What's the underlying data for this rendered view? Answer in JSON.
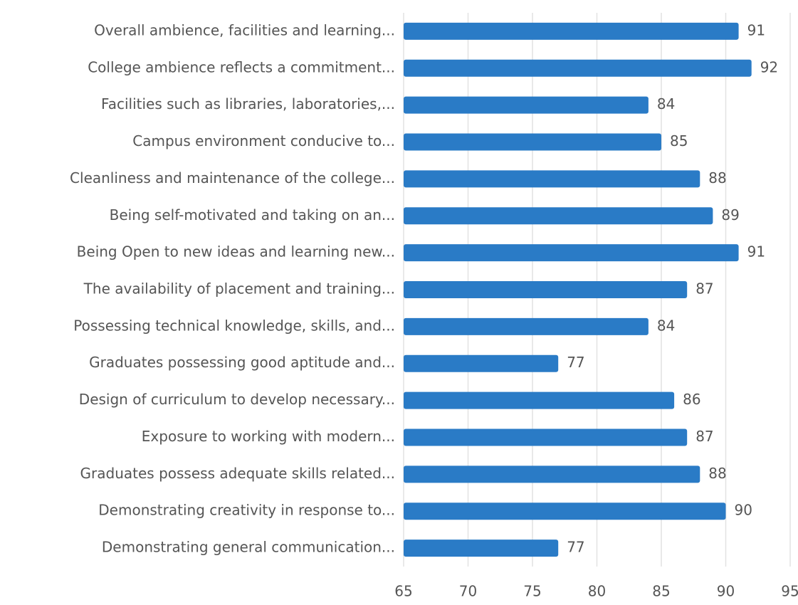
{
  "chart_data": {
    "type": "barh",
    "categories": [
      "Overall ambience, facilities and learning...",
      "College ambience reflects a commitment...",
      "Facilities such as libraries, laboratories,...",
      "Campus environment conducive to...",
      "Cleanliness and maintenance of the college...",
      "Being self-motivated and taking on an...",
      "Being Open to new ideas and learning new...",
      "The availability of placement and training...",
      "Possessing technical knowledge, skills, and...",
      "Graduates possessing good aptitude and...",
      "Design of curriculum to develop necessary...",
      "Exposure to working with modern...",
      "Graduates possess adequate skills related...",
      "Demonstrating creativity in response to...",
      "Demonstrating general communication..."
    ],
    "values": [
      91,
      92,
      84,
      85,
      88,
      89,
      91,
      87,
      84,
      77,
      86,
      87,
      88,
      90,
      77
    ],
    "color": "#2a7bc6",
    "xlim": [
      65,
      95
    ],
    "xticks": [
      65,
      70,
      75,
      80,
      85,
      90,
      95
    ],
    "grid": true
  }
}
